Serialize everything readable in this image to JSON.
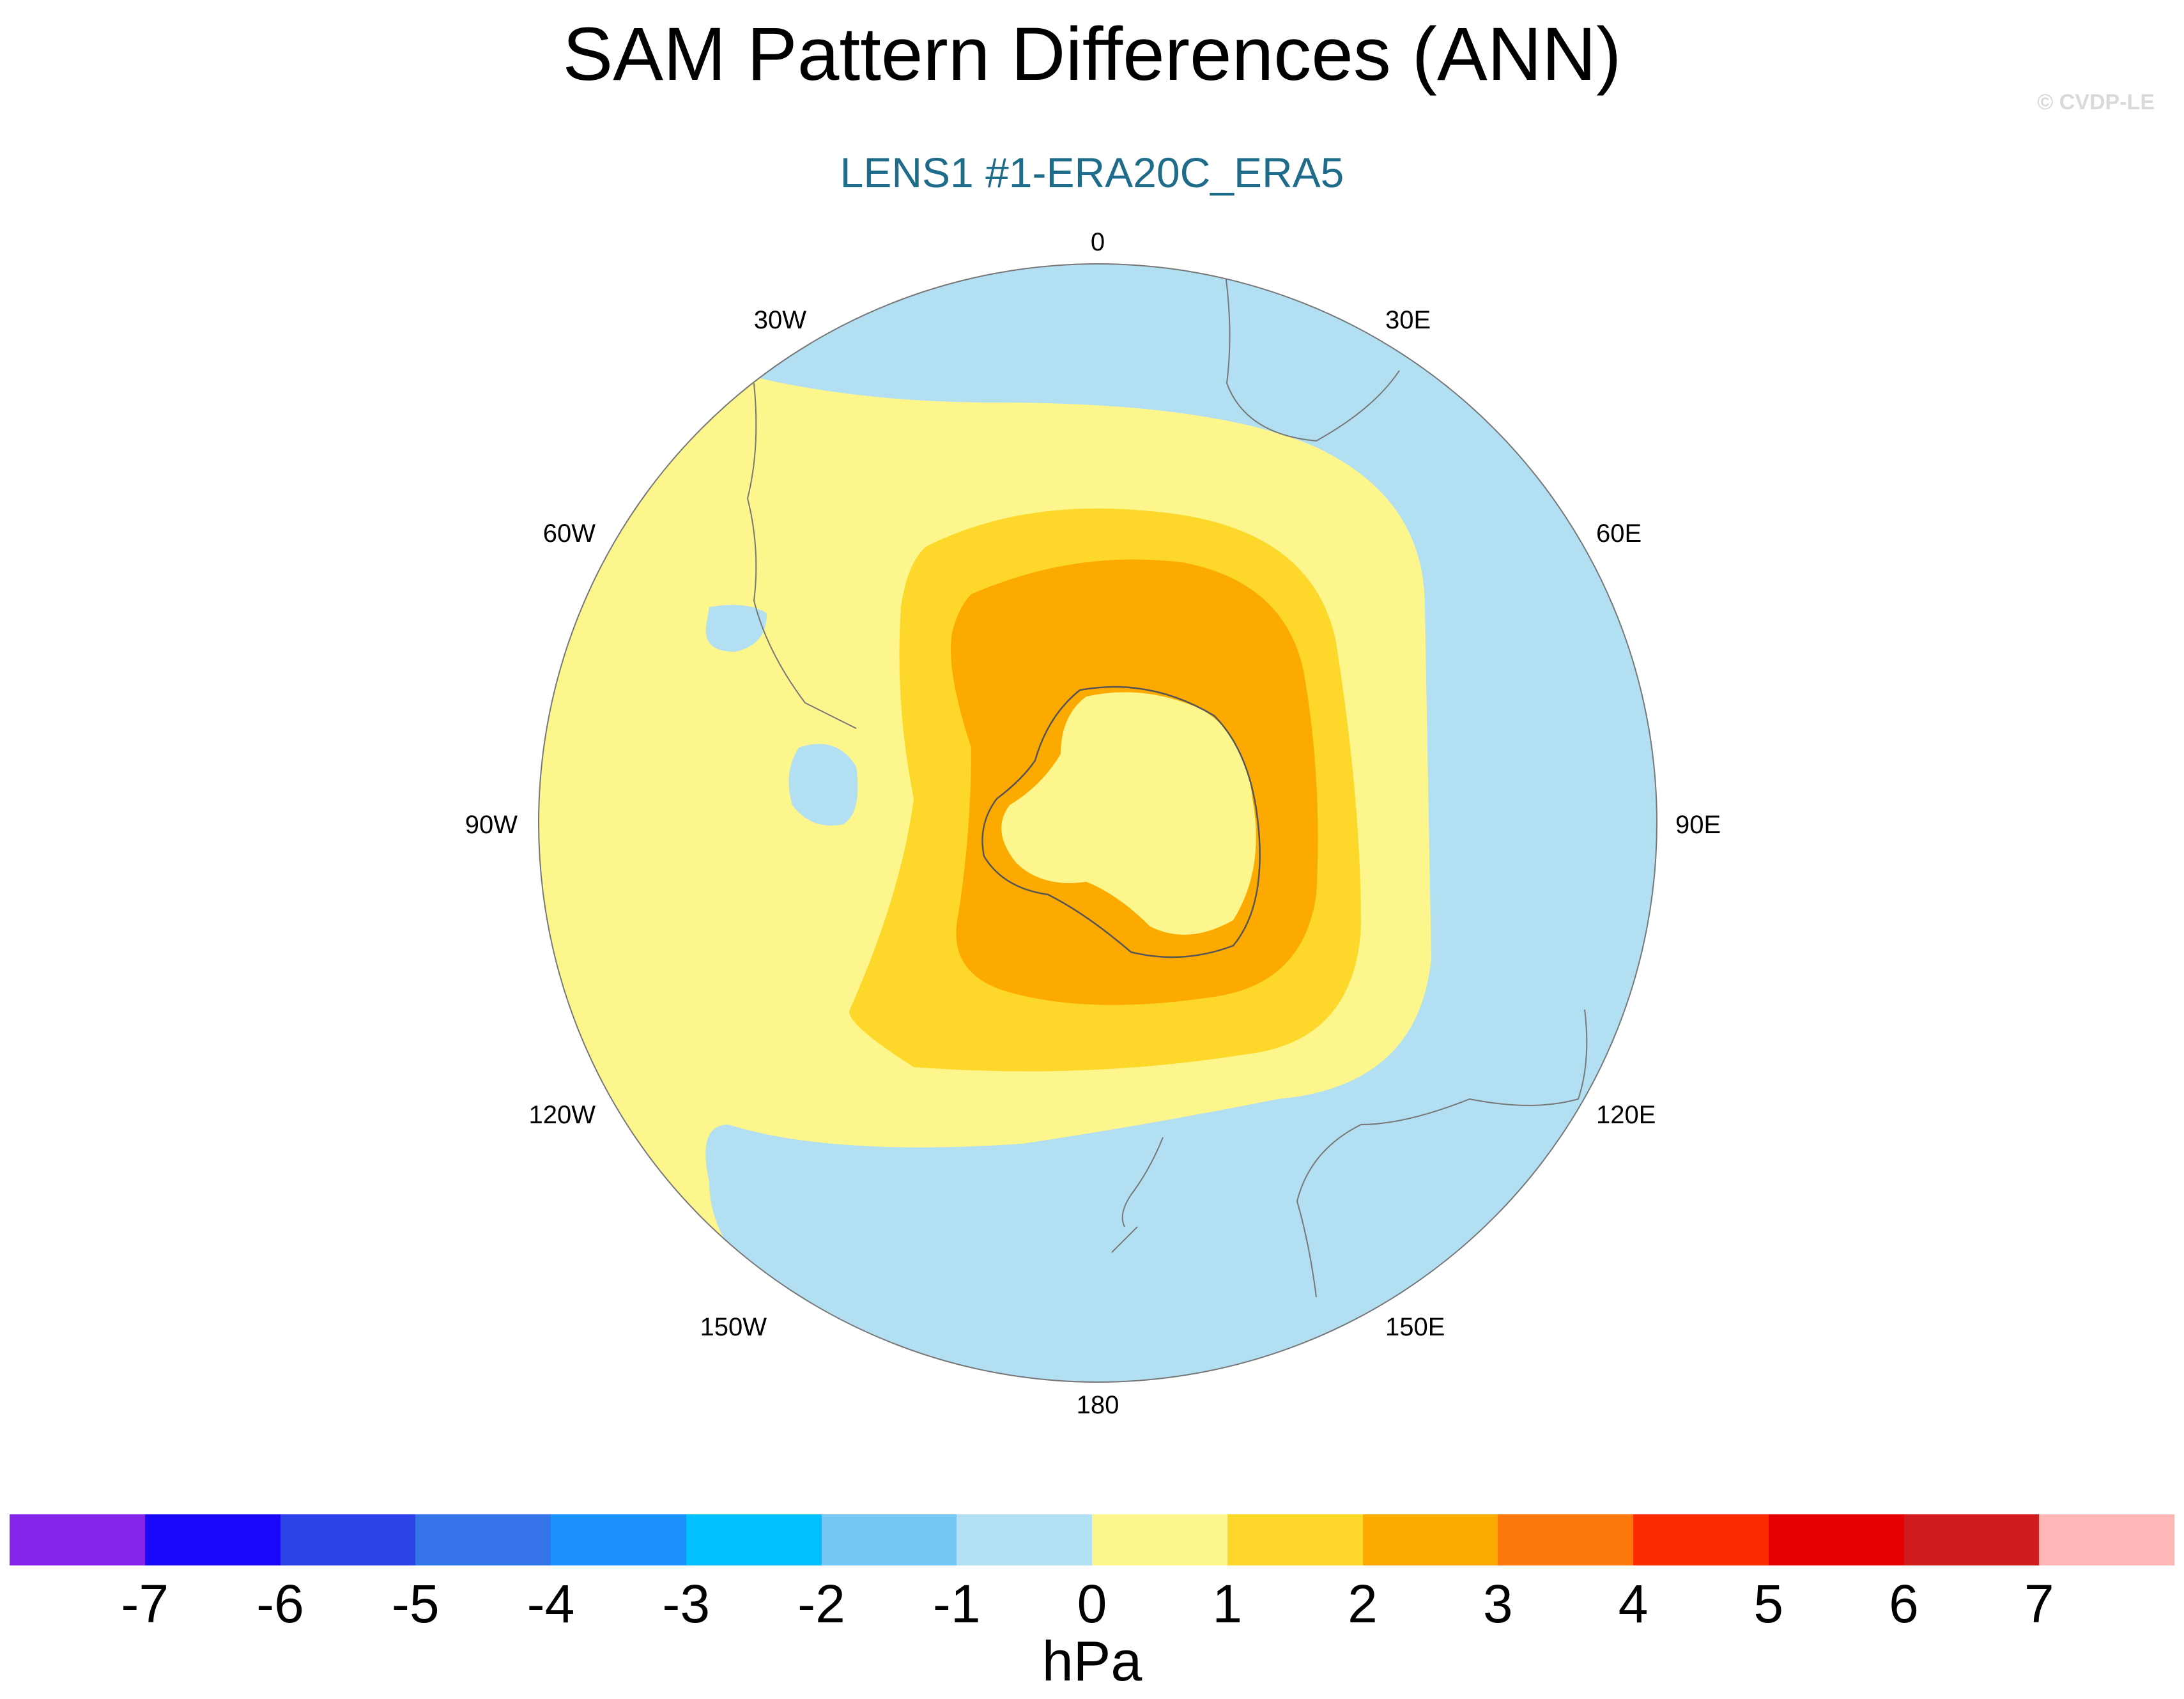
{
  "title": "SAM Pattern Differences (ANN)",
  "watermark": "© CVDP-LE",
  "subtitle": "LENS1 #1-ERA20C_ERA5",
  "subtitle_color": "#1e6b8a",
  "map": {
    "projection": "polar stereographic (Southern Hemisphere)",
    "longitude_labels": [
      "0",
      "30E",
      "60E",
      "90E",
      "120E",
      "150E",
      "180",
      "150W",
      "120W",
      "90W",
      "60W",
      "30W"
    ],
    "ocean_background_color": "#b3dff2"
  },
  "colorbar": {
    "units": "hPa",
    "tick_labels": [
      "-7",
      "-6",
      "-5",
      "-4",
      "-3",
      "-2",
      "-1",
      "0",
      "1",
      "2",
      "3",
      "4",
      "5",
      "6",
      "7"
    ],
    "colors": [
      "#8525ea",
      "#1a08fb",
      "#2c43e8",
      "#3574e8",
      "#1b90ff",
      "#00c0ff",
      "#73c7f2",
      "#b3dff2",
      "#fdf68c",
      "#fdd72a",
      "#fdaa00",
      "#fd780a",
      "#fd2b00",
      "#e60000",
      "#cf1d1d",
      "#ffb6b6"
    ]
  }
}
